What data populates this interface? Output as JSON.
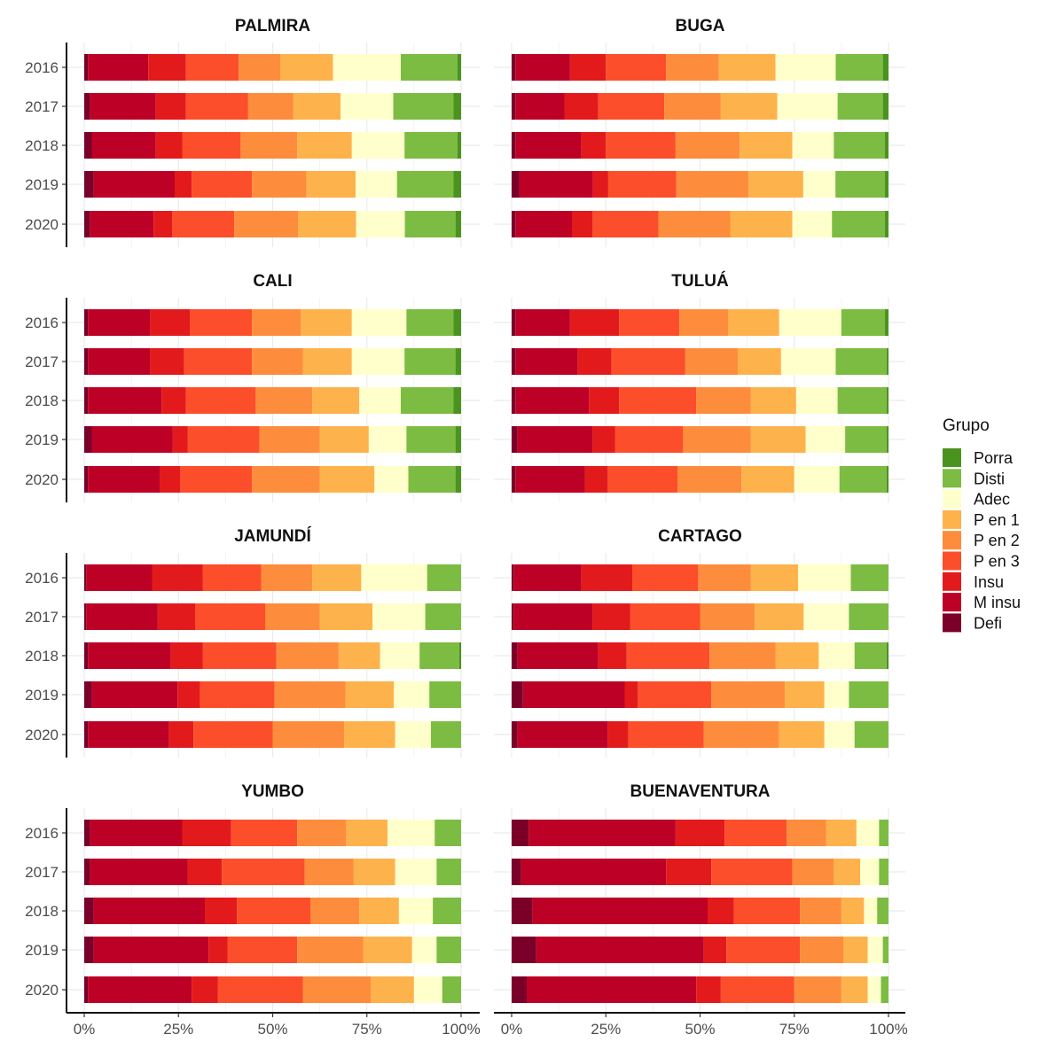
{
  "chart_data": {
    "type": "bar",
    "orientation": "horizontal",
    "stacked": "percent",
    "legend_title": "Grupo",
    "legend_position": "right",
    "grid": true,
    "xlim": [
      0,
      100
    ],
    "x_ticks": [
      "0%",
      "25%",
      "50%",
      "75%",
      "100%"
    ],
    "years": [
      "2016",
      "2017",
      "2018",
      "2019",
      "2020"
    ],
    "groups": [
      {
        "name": "Defi",
        "color": "#7a0029"
      },
      {
        "name": "M insu",
        "color": "#bd0026"
      },
      {
        "name": "Insu",
        "color": "#e31a1c"
      },
      {
        "name": "P en 3",
        "color": "#fc4e2a"
      },
      {
        "name": "P en 2",
        "color": "#fd8d3c"
      },
      {
        "name": "P en 1",
        "color": "#feb24c"
      },
      {
        "name": "Adec",
        "color": "#ffffcc"
      },
      {
        "name": "Disti",
        "color": "#7cbc42"
      },
      {
        "name": "Porra",
        "color": "#4b931f"
      }
    ],
    "legend_order": [
      "Porra",
      "Disti",
      "Adec",
      "P en 1",
      "P en 2",
      "P en 3",
      "Insu",
      "M insu",
      "Defi"
    ],
    "panels": [
      {
        "title": "PALMIRA",
        "data": [
          [
            1,
            16,
            10,
            14,
            11,
            14,
            18,
            15,
            1
          ],
          [
            1.5,
            17.5,
            8,
            16.5,
            12,
            12.5,
            14,
            16,
            2
          ],
          [
            2,
            17,
            7,
            15.5,
            15,
            14.5,
            14,
            14,
            1
          ],
          [
            2.5,
            21.5,
            4.5,
            16,
            14.5,
            13,
            11,
            15,
            2
          ],
          [
            1.5,
            17,
            5,
            16.5,
            17,
            15.5,
            13,
            13.5,
            1.5
          ]
        ]
      },
      {
        "title": "BUGA",
        "data": [
          [
            1,
            14.5,
            9.5,
            16,
            14,
            15,
            16,
            12.5,
            1.5
          ],
          [
            1,
            13,
            9,
            17.5,
            15,
            15,
            16,
            12,
            1.5
          ],
          [
            1,
            17.5,
            6.5,
            18.5,
            17,
            14,
            11,
            13.5,
            1
          ],
          [
            2,
            19.5,
            4,
            18,
            19,
            14.5,
            8.5,
            13,
            1
          ],
          [
            1,
            15,
            5.5,
            17.5,
            19,
            16.5,
            10.5,
            14,
            1
          ]
        ]
      },
      {
        "title": "CALI",
        "data": [
          [
            1,
            16.5,
            10.5,
            16.5,
            13,
            13.5,
            14.5,
            12.5,
            2
          ],
          [
            1,
            16.5,
            9,
            18,
            13.5,
            13,
            14,
            13.5,
            1.5
          ],
          [
            1,
            19.5,
            6.5,
            18.5,
            15,
            12.5,
            11,
            14,
            2
          ],
          [
            2,
            21.5,
            4,
            19,
            16,
            13,
            10,
            13,
            1.5
          ],
          [
            1,
            19,
            5.5,
            19,
            18,
            14.5,
            9,
            12.5,
            1.5
          ]
        ]
      },
      {
        "title": "TULUÁ",
        "data": [
          [
            1,
            14.5,
            13,
            16,
            13,
            13.5,
            16.5,
            11.5,
            1
          ],
          [
            1,
            16.5,
            9,
            19.5,
            14,
            11.5,
            14.5,
            13.5,
            0.5
          ],
          [
            1,
            19.5,
            8,
            20.5,
            14.5,
            12,
            11,
            13,
            0.5
          ],
          [
            1.5,
            20,
            6,
            18,
            18,
            14.5,
            10.5,
            11,
            0.5
          ],
          [
            1,
            18.5,
            6,
            18.5,
            17,
            14,
            12,
            12.5,
            0.5
          ]
        ]
      },
      {
        "title": "JAMUNDÍ",
        "data": [
          [
            0.5,
            17.5,
            13.5,
            15.5,
            13.5,
            13,
            17.5,
            9,
            0
          ],
          [
            0.5,
            19,
            10,
            18.5,
            14.5,
            14,
            14,
            9.5,
            0
          ],
          [
            1,
            22,
            8.5,
            19.5,
            16.5,
            11,
            10.5,
            10.5,
            0.5
          ],
          [
            2,
            23,
            6,
            20,
            19,
            13,
            9.5,
            8.5,
            0
          ],
          [
            1,
            21.5,
            6.5,
            21,
            19,
            13.5,
            9.5,
            8,
            0
          ]
        ]
      },
      {
        "title": "CARTAGO",
        "data": [
          [
            0.5,
            18,
            13.5,
            17.5,
            14,
            12.5,
            14,
            10,
            0
          ],
          [
            0.5,
            21,
            10,
            18.5,
            14.5,
            13,
            12,
            10.5,
            0
          ],
          [
            1.5,
            21.5,
            7.5,
            22,
            17.5,
            11.5,
            9.5,
            8.5,
            0.5
          ],
          [
            3,
            27,
            3.5,
            19.5,
            19.5,
            10.5,
            6.5,
            10.5,
            0
          ],
          [
            1.5,
            24,
            5.5,
            20,
            20,
            12,
            8,
            9,
            0
          ]
        ]
      },
      {
        "title": "YUMBO",
        "data": [
          [
            1.5,
            24.5,
            13,
            17.5,
            13,
            11,
            12.5,
            7,
            0
          ],
          [
            1.5,
            26,
            9,
            22,
            13,
            11,
            11,
            6.5,
            0
          ],
          [
            2.5,
            29.5,
            8.5,
            19.5,
            13,
            10.5,
            9,
            7.5,
            0
          ],
          [
            2.5,
            30.5,
            5,
            18.5,
            17.5,
            13,
            6.5,
            6.5,
            0
          ],
          [
            1,
            27.5,
            7,
            22.5,
            18,
            11.5,
            7.5,
            5,
            0
          ]
        ]
      },
      {
        "title": "BUENAVENTURA",
        "data": [
          [
            4.5,
            39,
            13,
            16.5,
            10.5,
            8,
            6,
            2.5,
            0
          ],
          [
            2.5,
            38.5,
            12,
            21.5,
            11,
            7,
            5,
            2.5,
            0
          ],
          [
            5.5,
            46.5,
            7,
            17.5,
            11,
            6,
            3.5,
            3,
            0
          ],
          [
            6.5,
            44.5,
            6,
            19.5,
            11.5,
            6.5,
            4,
            1.5,
            0
          ],
          [
            4,
            45,
            6.5,
            19.5,
            12.5,
            7,
            3.5,
            2,
            0
          ]
        ]
      }
    ]
  }
}
